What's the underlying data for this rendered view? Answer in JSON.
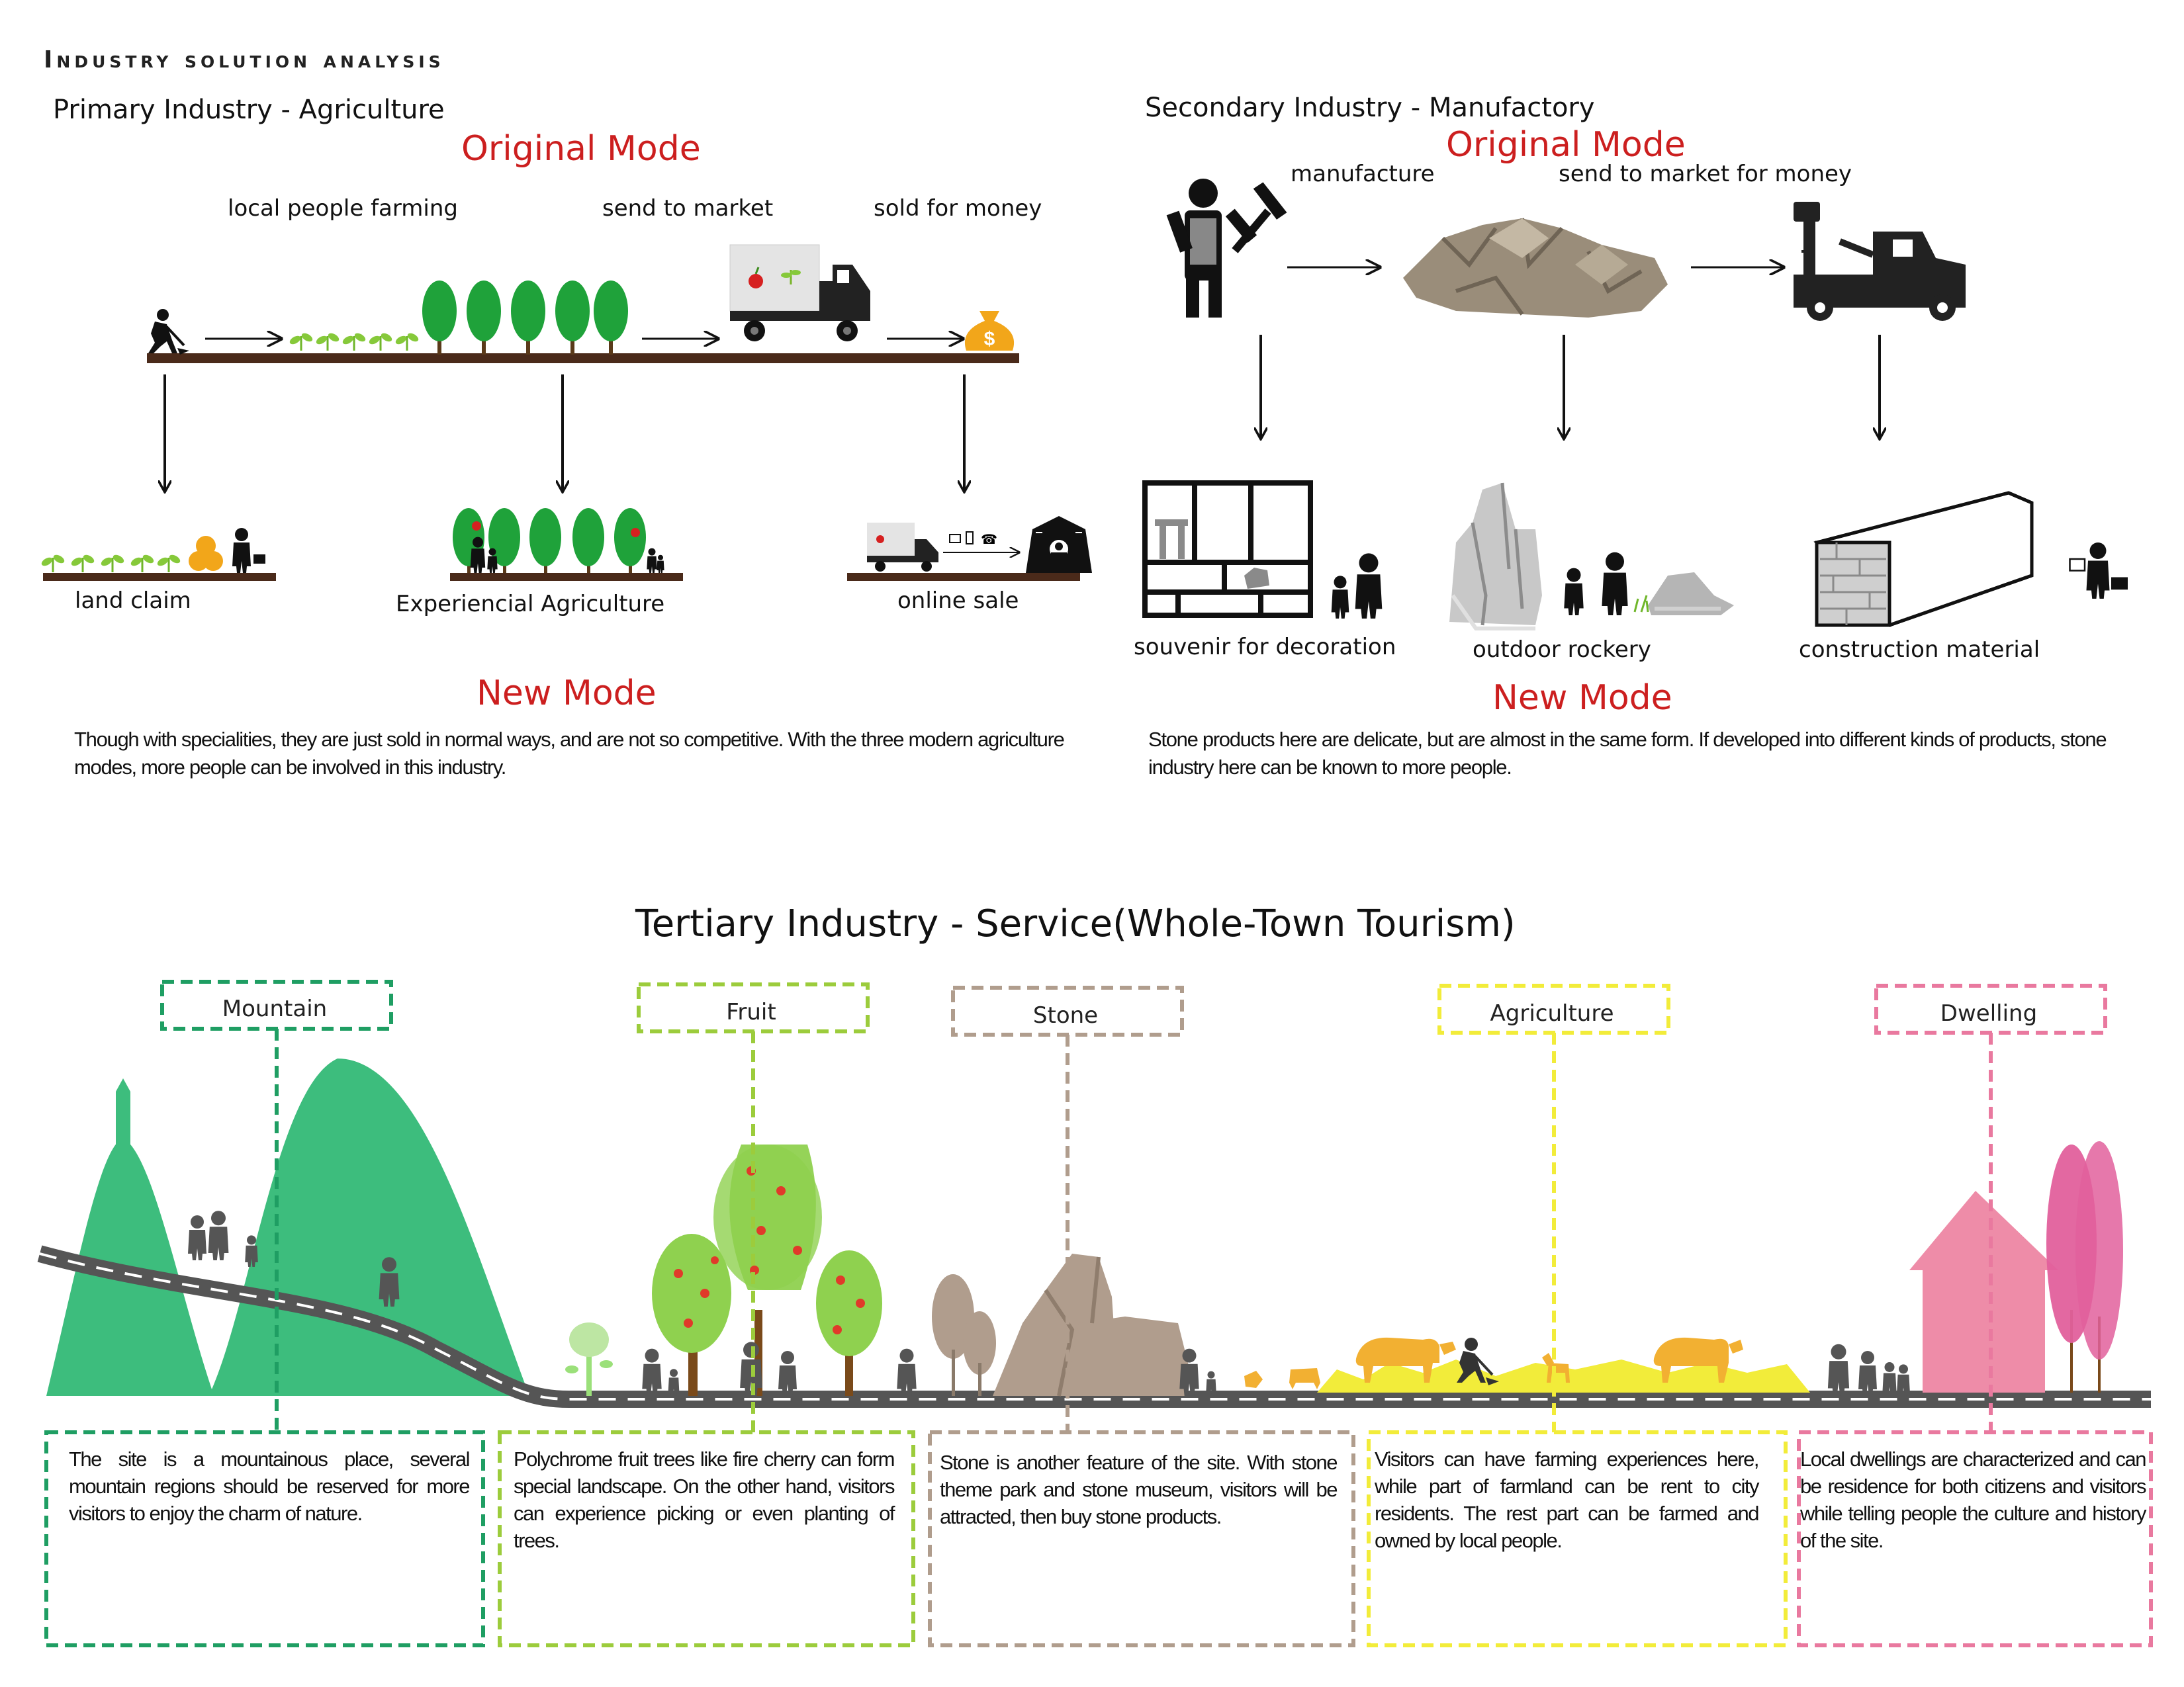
{
  "title": "Industry solution analysis",
  "primary": {
    "heading": "Primary Industry - Agriculture",
    "original_mode": "Original Mode",
    "new_mode": "New Mode",
    "steps": [
      "local people farming",
      "send to market",
      "sold for money"
    ],
    "new_options": [
      "land claim",
      "Experiencial Agriculture",
      "online sale"
    ],
    "note": "Though with specialities, they are just sold in normal ways, and are not so competitive. With the three modern agriculture modes, more people can be involved in this industry."
  },
  "secondary": {
    "heading": "Secondary Industry - Manufactory",
    "original_mode": "Original Mode",
    "new_mode": "New Mode",
    "steps": [
      "manufacture",
      "send to market for money"
    ],
    "new_options": [
      "souvenir for decoration",
      "outdoor rockery",
      "construction material"
    ],
    "note": "Stone products here are delicate, but are almost in the same form. If developed into different kinds of products, stone industry here can be known to more people."
  },
  "tertiary": {
    "heading": "Tertiary Industry - Service(Whole-Town Tourism)",
    "categories": [
      {
        "label": "Mountain",
        "color": "#1f9e63",
        "text": "The site is a mountainous place, several mountain regions should be reserved for more visitors to enjoy the charm of nature."
      },
      {
        "label": "Fruit",
        "color": "#9ccc3c",
        "text": "Polychrome fruit trees like fire cherry can form special landscape. On the other hand, visitors can experience picking or even planting of trees."
      },
      {
        "label": "Stone",
        "color": "#b09d8d",
        "text": "Stone is another feature of the site. With stone theme park and stone museum, visitors will be attracted, then buy stone products."
      },
      {
        "label": "Agriculture",
        "color": "#f2ec3a",
        "text": "Visitors can have farming experiences here, while part of farmland can be rent to city residents. The rest part can be farmed and owned by local people."
      },
      {
        "label": "Dwelling",
        "color": "#e9799f",
        "text": "Local dwellings are characterized and can be residence for both citizens and visitors while telling people the culture and history of the site."
      }
    ]
  },
  "icons": [
    "farmer-icon",
    "seedling-icon",
    "tree-icon",
    "truck-icon",
    "money-bag-icon",
    "businessman-icon",
    "worker-icon",
    "hammer-icon",
    "stone-pile-icon",
    "crane-truck-icon",
    "shelf-icon",
    "rockery-icon",
    "stone-block-icon",
    "family-icon",
    "house-icon",
    "cattle-icon"
  ],
  "colors": {
    "accent_red": "#cc1f1f",
    "ground_brown": "#4a2a1a",
    "mountain_green": "#3dbd7d",
    "road_gray": "#555555"
  }
}
